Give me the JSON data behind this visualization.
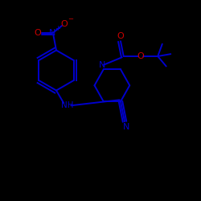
{
  "background_color": "#000000",
  "bond_color": "#0000CD",
  "atom_colors": {
    "N": "#0000CD",
    "O": "#CC0000",
    "C": "#0000CD"
  },
  "figsize": [
    2.5,
    2.5
  ],
  "dpi": 100,
  "xlim": [
    0,
    10
  ],
  "ylim": [
    0,
    10
  ]
}
